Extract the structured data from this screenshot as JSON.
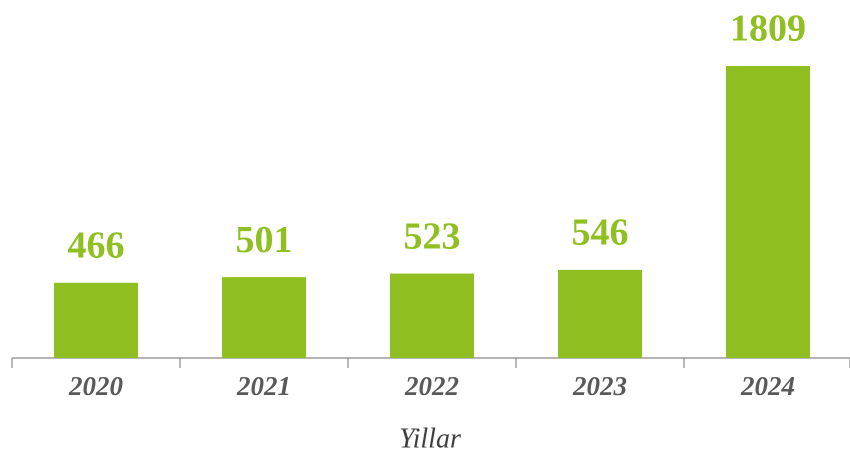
{
  "chart_data": {
    "type": "bar",
    "x_label": "Yillar",
    "categories": [
      "2020",
      "2021",
      "2022",
      "2023",
      "2024"
    ],
    "values": [
      466,
      501,
      523,
      546,
      1809
    ],
    "color": "#8fbf21"
  }
}
